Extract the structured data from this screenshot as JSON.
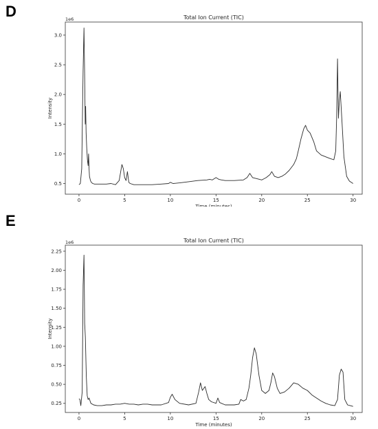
{
  "panels": [
    {
      "letter": "D"
    },
    {
      "letter": "E"
    }
  ],
  "chart_data": [
    {
      "type": "line",
      "title": "Total Ion Current (TIC)",
      "xlabel": "Time (minutes)",
      "ylabel": "Intensity",
      "offset_label": "1e6",
      "xlim": [
        -1.5,
        31.0
      ],
      "ylim": [
        0.32,
        3.22
      ],
      "xticks": [
        0,
        5,
        10,
        15,
        20,
        25,
        30
      ],
      "yticks": [
        0.5,
        1.0,
        1.5,
        2.0,
        2.5,
        3.0
      ],
      "ytick_labels": [
        "0.5",
        "1.0",
        "1.5",
        "2.0",
        "2.5",
        "3.0"
      ],
      "grid": false,
      "color": "#2a2a2a",
      "series": [
        {
          "x": [
            0.0,
            0.15,
            0.3,
            0.45,
            0.55,
            0.62,
            0.68,
            0.73,
            0.78,
            0.85,
            0.92,
            1.0,
            1.05,
            1.1,
            1.15,
            1.25,
            1.35,
            1.5,
            1.7,
            2.0,
            2.5,
            3.0,
            3.5,
            4.0,
            4.4,
            4.7,
            4.85,
            5.0,
            5.15,
            5.3,
            5.45,
            5.6,
            6.0,
            7.0,
            8.0,
            9.0,
            9.8,
            10.0,
            10.3,
            11.0,
            12.0,
            13.0,
            14.0,
            14.3,
            14.6,
            15.0,
            15.3,
            15.6,
            16.0,
            17.0,
            18.0,
            18.4,
            18.7,
            19.0,
            19.5,
            20.0,
            20.5,
            20.9,
            21.1,
            21.4,
            21.8,
            22.2,
            22.6,
            23.0,
            23.5,
            23.8,
            24.0,
            24.3,
            24.6,
            24.8,
            25.0,
            25.3,
            25.7,
            26.0,
            26.5,
            27.0,
            27.5,
            27.9,
            28.1,
            28.2,
            28.3,
            28.4,
            28.5,
            28.6,
            28.8,
            29.0,
            29.3,
            29.6,
            30.0
          ],
          "y": [
            0.48,
            0.5,
            0.75,
            2.4,
            3.12,
            2.3,
            1.5,
            1.8,
            1.35,
            1.1,
            0.9,
            0.8,
            1.0,
            0.75,
            0.62,
            0.55,
            0.52,
            0.5,
            0.49,
            0.49,
            0.49,
            0.49,
            0.5,
            0.48,
            0.55,
            0.82,
            0.75,
            0.6,
            0.55,
            0.7,
            0.52,
            0.5,
            0.48,
            0.48,
            0.48,
            0.49,
            0.5,
            0.52,
            0.5,
            0.51,
            0.53,
            0.55,
            0.56,
            0.57,
            0.56,
            0.6,
            0.57,
            0.56,
            0.55,
            0.55,
            0.56,
            0.6,
            0.67,
            0.6,
            0.58,
            0.56,
            0.6,
            0.65,
            0.7,
            0.62,
            0.6,
            0.62,
            0.66,
            0.72,
            0.82,
            0.92,
            1.05,
            1.25,
            1.42,
            1.48,
            1.4,
            1.35,
            1.2,
            1.05,
            0.98,
            0.95,
            0.92,
            0.9,
            1.05,
            1.6,
            2.6,
            1.6,
            1.9,
            2.05,
            1.5,
            0.95,
            0.62,
            0.54,
            0.5
          ]
        }
      ]
    },
    {
      "type": "line",
      "title": "Total Ion Current (TIC)",
      "xlabel": "Time (minutes)",
      "ylabel": "Intensity",
      "offset_label": "1e6",
      "xlim": [
        -1.5,
        31.0
      ],
      "ylim": [
        0.13,
        2.33
      ],
      "xticks": [
        0,
        5,
        10,
        15,
        20,
        25,
        30
      ],
      "yticks": [
        0.25,
        0.5,
        0.75,
        1.0,
        1.25,
        1.5,
        1.75,
        2.0,
        2.25
      ],
      "ytick_labels": [
        "0.25",
        "0.50",
        "0.75",
        "1.00",
        "1.25",
        "1.50",
        "1.75",
        "2.00",
        "2.25"
      ],
      "grid": false,
      "color": "#2a2a2a",
      "series": [
        {
          "x": [
            0.0,
            0.1,
            0.2,
            0.35,
            0.45,
            0.55,
            0.62,
            0.7,
            0.8,
            0.9,
            1.0,
            1.1,
            1.3,
            1.6,
            2.0,
            2.5,
            3.0,
            3.5,
            4.0,
            4.5,
            5.0,
            5.5,
            6.0,
            6.5,
            7.0,
            7.5,
            8.0,
            9.0,
            9.8,
            10.0,
            10.2,
            10.5,
            11.0,
            12.0,
            12.8,
            13.1,
            13.3,
            13.5,
            13.8,
            14.0,
            14.2,
            14.5,
            15.0,
            15.2,
            15.4,
            16.0,
            17.0,
            17.5,
            17.7,
            18.0,
            18.3,
            18.6,
            18.8,
            19.0,
            19.2,
            19.4,
            19.7,
            20.0,
            20.4,
            20.8,
            21.0,
            21.2,
            21.4,
            21.7,
            22.0,
            22.5,
            23.0,
            23.5,
            24.0,
            24.5,
            25.0,
            25.5,
            26.0,
            26.5,
            27.0,
            27.5,
            28.0,
            28.3,
            28.5,
            28.7,
            28.9,
            29.1,
            29.4,
            29.7,
            30.0
          ],
          "y": [
            0.31,
            0.3,
            0.22,
            0.4,
            1.8,
            2.2,
            1.3,
            1.12,
            0.6,
            0.35,
            0.3,
            0.32,
            0.25,
            0.23,
            0.22,
            0.22,
            0.23,
            0.23,
            0.24,
            0.24,
            0.25,
            0.24,
            0.24,
            0.23,
            0.24,
            0.24,
            0.23,
            0.23,
            0.26,
            0.33,
            0.37,
            0.3,
            0.25,
            0.23,
            0.25,
            0.4,
            0.52,
            0.42,
            0.47,
            0.38,
            0.3,
            0.27,
            0.25,
            0.32,
            0.26,
            0.23,
            0.23,
            0.24,
            0.3,
            0.28,
            0.3,
            0.45,
            0.62,
            0.85,
            0.98,
            0.9,
            0.62,
            0.42,
            0.38,
            0.42,
            0.52,
            0.65,
            0.6,
            0.45,
            0.38,
            0.4,
            0.45,
            0.52,
            0.5,
            0.45,
            0.42,
            0.36,
            0.32,
            0.28,
            0.25,
            0.23,
            0.22,
            0.3,
            0.62,
            0.7,
            0.66,
            0.3,
            0.23,
            0.22,
            0.21
          ]
        }
      ]
    }
  ]
}
